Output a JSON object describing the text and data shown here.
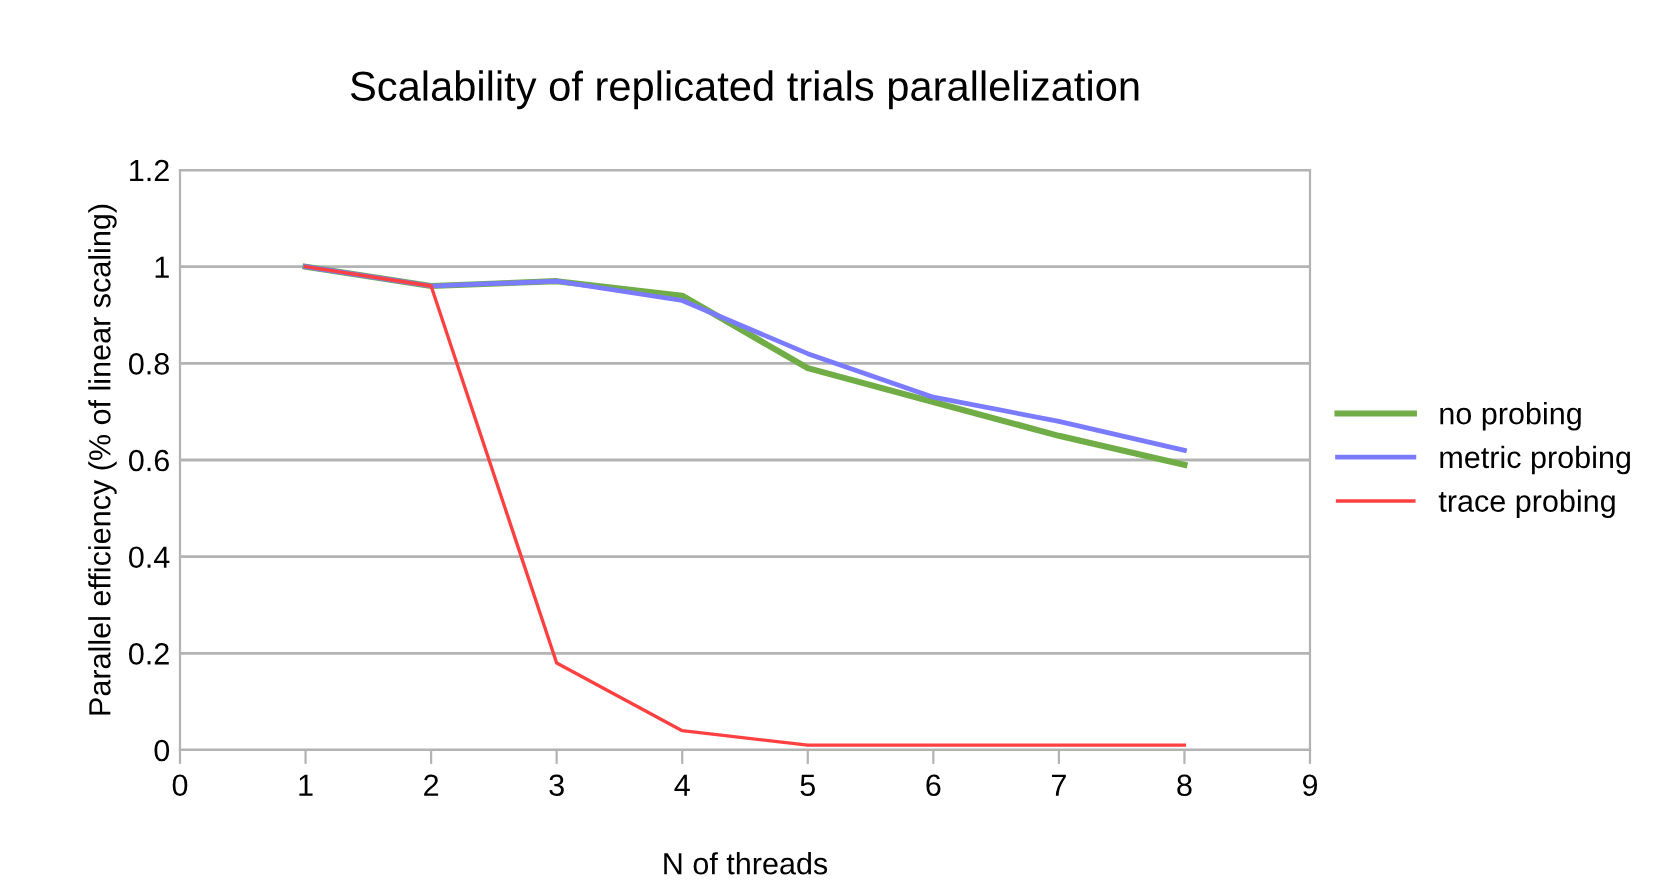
{
  "chart_data": {
    "type": "line",
    "title": "Scalability of replicated trials parallelization",
    "xlabel": "N of threads",
    "ylabel": "Parallel efficiency (% of linear scaling)",
    "x": [
      1,
      2,
      3,
      4,
      5,
      6,
      7,
      8
    ],
    "series": [
      {
        "name": "no probing",
        "color": "#70ad47",
        "values": [
          1.0,
          0.96,
          0.97,
          0.94,
          0.79,
          0.72,
          0.65,
          0.59
        ]
      },
      {
        "name": "metric probing",
        "color": "#7b7bff",
        "values": [
          1.0,
          0.96,
          0.97,
          0.93,
          0.82,
          0.73,
          0.68,
          0.62
        ]
      },
      {
        "name": "trace probing",
        "color": "#ff4040",
        "values": [
          1.0,
          0.96,
          0.18,
          0.04,
          0.01,
          0.01,
          0.01,
          0.01
        ]
      }
    ],
    "xlim": [
      0,
      9
    ],
    "xticks": [
      0,
      1,
      2,
      3,
      4,
      5,
      6,
      7,
      8,
      9
    ],
    "ylim": [
      0,
      1.2
    ],
    "yticks": [
      0,
      0.2,
      0.4,
      0.6,
      0.8,
      1,
      1.2
    ],
    "grid": "y",
    "legend": "right",
    "marker": "none",
    "line_style": "solid"
  }
}
